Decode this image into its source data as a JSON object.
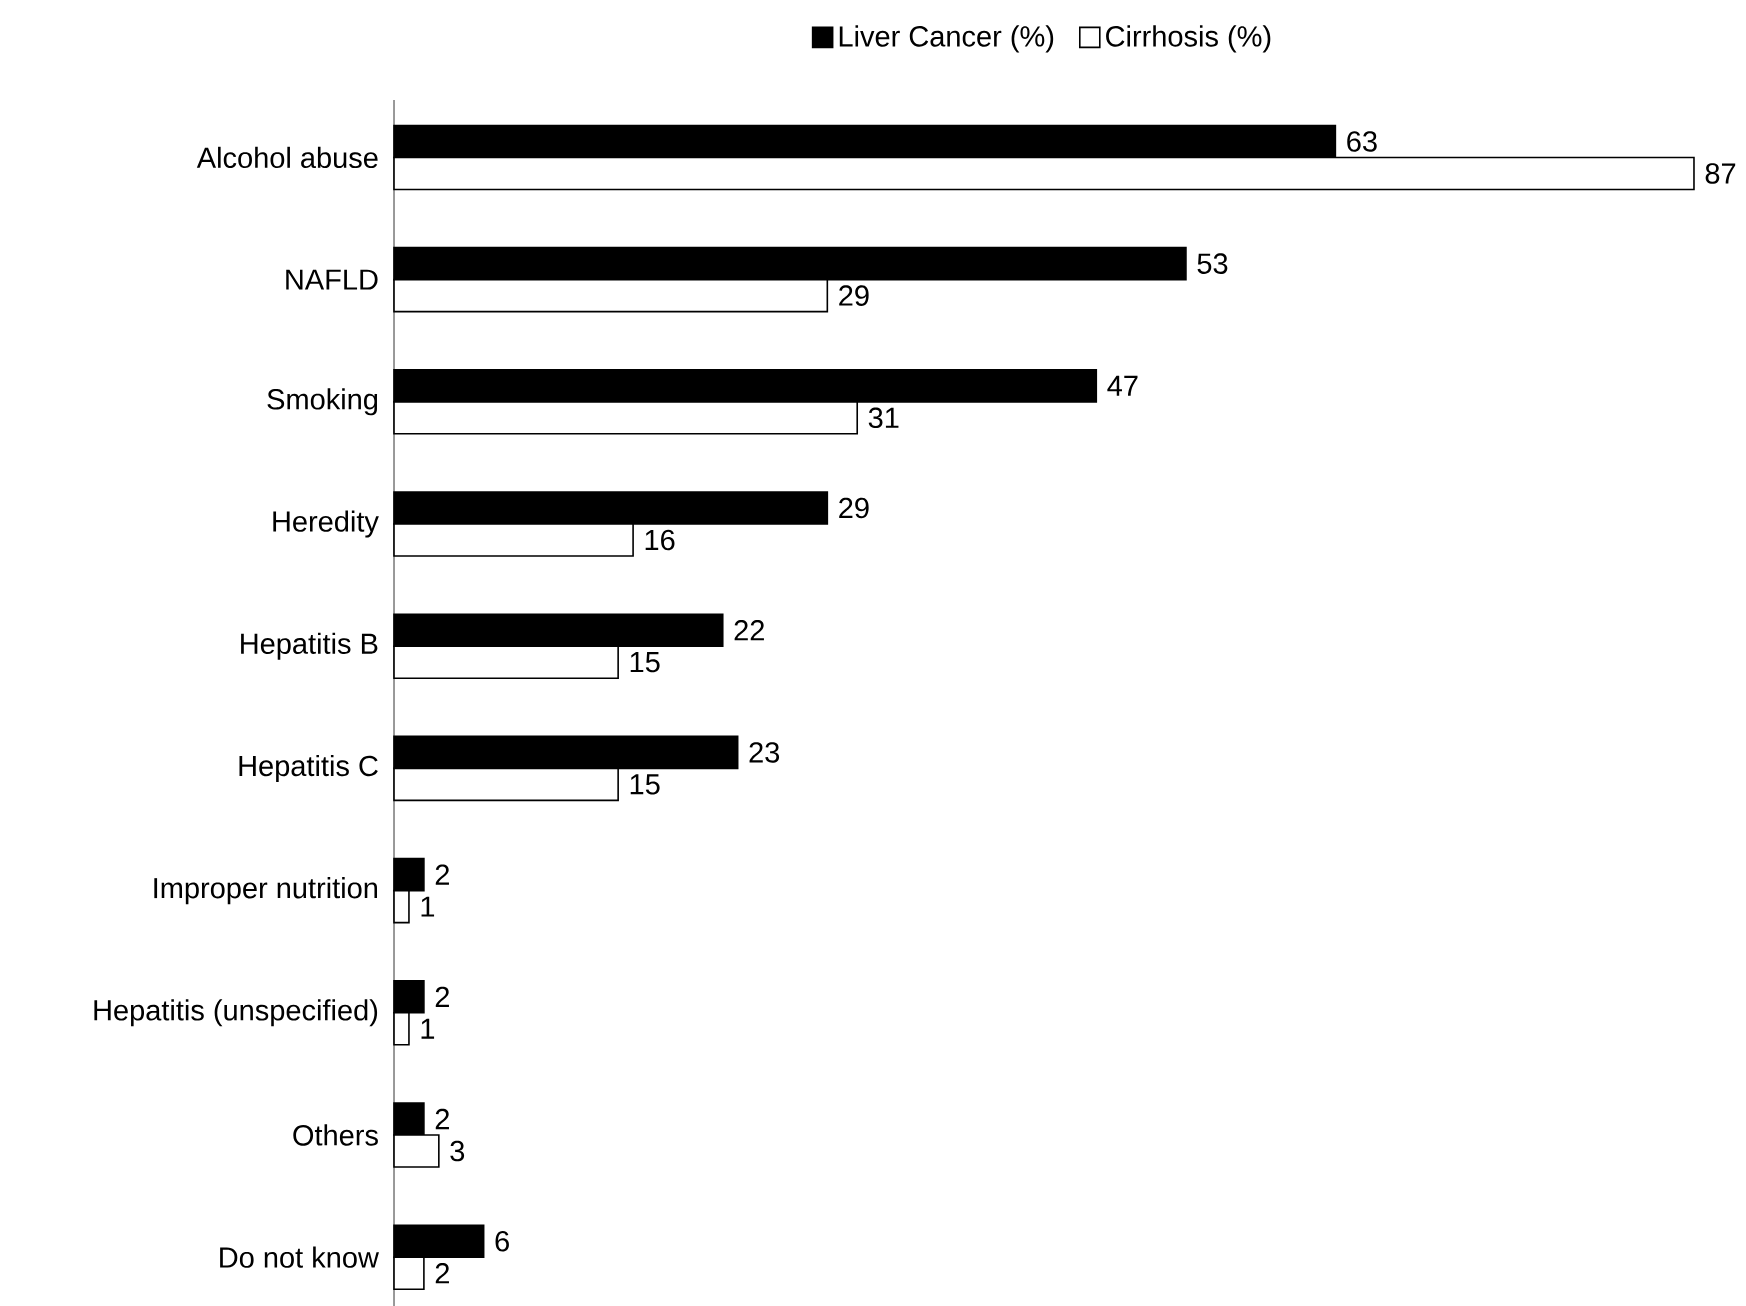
{
  "chart_data": {
    "type": "bar",
    "orientation": "horizontal",
    "categories": [
      "Alcohol abuse",
      "NAFLD",
      "Smoking",
      "Heredity",
      "Hepatitis B",
      "Hepatitis C",
      "Improper nutrition",
      "Hepatitis (unspecified)",
      "Others",
      "Do not know"
    ],
    "series": [
      {
        "name": "Liver Cancer (%)",
        "color": "#000000",
        "values": [
          63,
          53,
          47,
          29,
          22,
          23,
          2,
          2,
          2,
          6
        ]
      },
      {
        "name": "Cirrhosis (%)",
        "color": "#ffffff",
        "values": [
          87,
          29,
          31,
          16,
          15,
          15,
          1,
          1,
          3,
          2
        ]
      }
    ],
    "data_labels": true,
    "legend": "top",
    "xlim": [
      0,
      87
    ]
  }
}
